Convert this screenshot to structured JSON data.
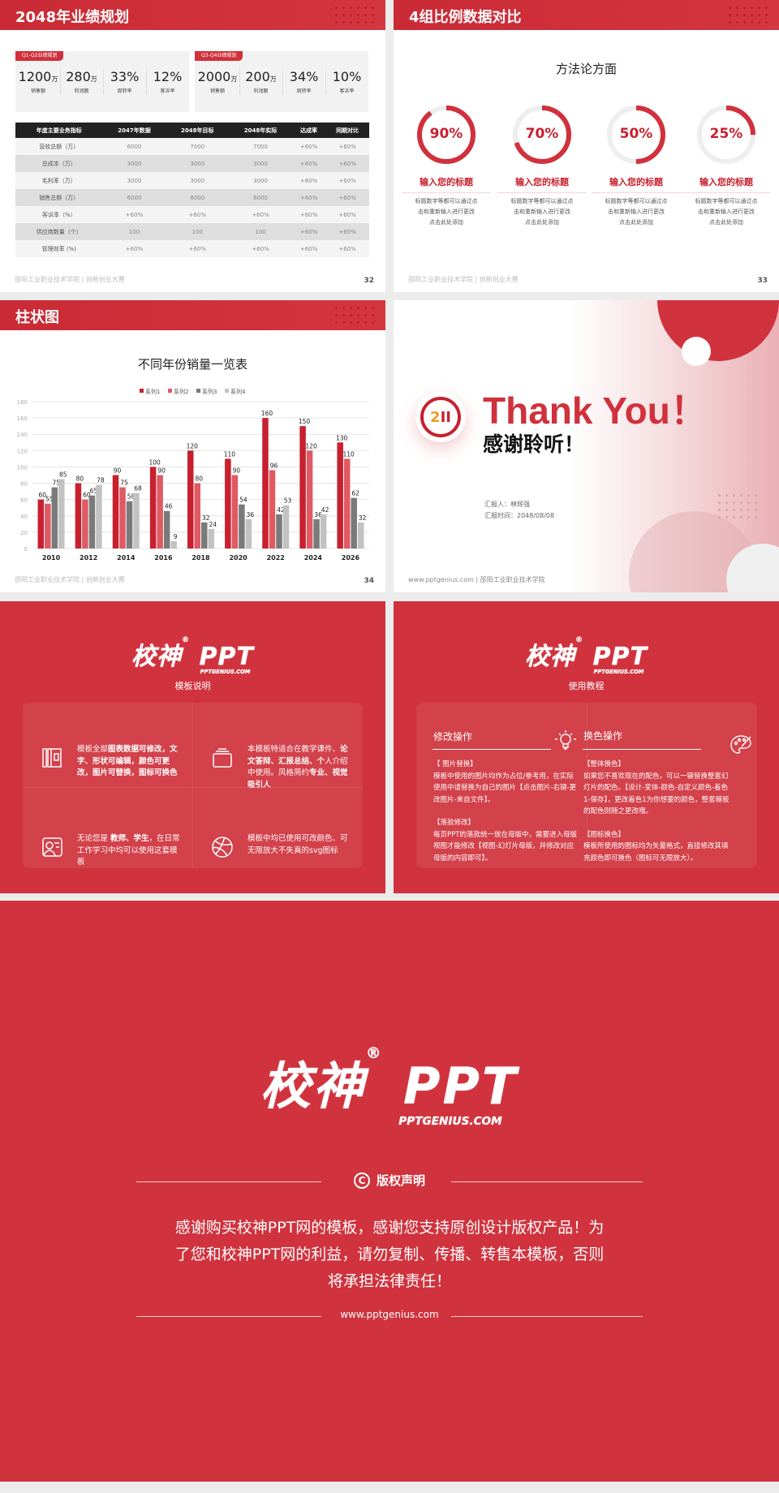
{
  "slide32": {
    "title": "2048年业绩规划",
    "page": "32",
    "footer": "邵阳工业职业技术学院 | 创新创业大赛",
    "cards": [
      {
        "tag": "Q1-Q2业绩规划",
        "kpis": [
          {
            "value": "1200",
            "unit": "万",
            "label": "销售额"
          },
          {
            "value": "280",
            "unit": "万",
            "label": "利润额"
          },
          {
            "value": "33%",
            "unit": "",
            "label": "周转率"
          },
          {
            "value": "12%",
            "unit": "",
            "label": "客诉率"
          }
        ]
      },
      {
        "tag": "Q3-Q4业绩规划",
        "kpis": [
          {
            "value": "2000",
            "unit": "万",
            "label": "销售额"
          },
          {
            "value": "200",
            "unit": "万",
            "label": "利润额"
          },
          {
            "value": "34%",
            "unit": "",
            "label": "周转率"
          },
          {
            "value": "10%",
            "unit": "",
            "label": "客诉率"
          }
        ]
      }
    ],
    "table": {
      "headers": [
        "年度主要业务指标",
        "2047年数据",
        "2048年目标",
        "2048年实际",
        "达成率",
        "同期对比"
      ],
      "rows": [
        [
          "营收总额（万）",
          "6000",
          "7000",
          "7000",
          "+60%",
          "+60%"
        ],
        [
          "总成本（万）",
          "3000",
          "3000",
          "3000",
          "+60%",
          "+60%"
        ],
        [
          "毛利率（万）",
          "3000",
          "3000",
          "3000",
          "+60%",
          "+60%"
        ],
        [
          "销售总额（万）",
          "6000",
          "6000",
          "6000",
          "+60%",
          "+60%"
        ],
        [
          "客诉率（%）",
          "+60%",
          "+60%",
          "+60%",
          "+60%",
          "+60%"
        ],
        [
          "供应商数量（个）",
          "100",
          "100",
          "100",
          "+60%",
          "+60%"
        ],
        [
          "管理效率 (%)",
          "+60%",
          "+60%",
          "+60%",
          "+60%",
          "+60%"
        ]
      ]
    }
  },
  "slide33": {
    "title": "4组比例数据对比",
    "subtitle": "方法论方面",
    "page": "33",
    "footer": "邵阳工业职业技术学院 | 创新创业大赛",
    "items": [
      {
        "percent": 90,
        "label": "90%",
        "title": "输入您的标题",
        "desc": [
          "标题数字等都可以通过点",
          "击和重新输入进行更改",
          "点击此处添加"
        ]
      },
      {
        "percent": 70,
        "label": "70%",
        "title": "输入您的标题",
        "desc": [
          "标题数字等都可以通过点",
          "击和重新输入进行更改",
          "点击此处添加"
        ]
      },
      {
        "percent": 50,
        "label": "50%",
        "title": "输入您的标题",
        "desc": [
          "标题数字等都可以通过点",
          "击和重新输入进行更改",
          "点击此处添加"
        ]
      },
      {
        "percent": 25,
        "label": "25%",
        "title": "输入您的标题",
        "desc": [
          "标题数字等都可以通过点",
          "击和重新输入进行更改",
          "点击此处添加"
        ]
      }
    ]
  },
  "slide34": {
    "title": "柱状图",
    "page": "34",
    "footer": "邵阳工业职业技术学院 | 创新创业大赛"
  },
  "chart_data": {
    "type": "bar",
    "title": "不同年份销量一览表",
    "legend_position": "top",
    "grid": true,
    "categories": [
      "2010",
      "2012",
      "2014",
      "2016",
      "2018",
      "2020",
      "2022",
      "2024",
      "2026"
    ],
    "ylim": [
      0,
      180
    ],
    "yticks": [
      0,
      20,
      40,
      60,
      80,
      100,
      120,
      140,
      160,
      180
    ],
    "series": [
      {
        "name": "系列1",
        "color": "#c8202e",
        "values": [
          60,
          80,
          90,
          100,
          120,
          110,
          160,
          150,
          130
        ]
      },
      {
        "name": "系列2",
        "color": "#e05a63",
        "values": [
          55,
          60,
          75,
          90,
          80,
          90,
          96,
          120,
          110
        ]
      },
      {
        "name": "系列3",
        "color": "#7a7a7a",
        "values": [
          75,
          65,
          58,
          46,
          32,
          54,
          42,
          36,
          62
        ]
      },
      {
        "name": "系列4",
        "color": "#c2c2c2",
        "values": [
          85,
          78,
          68,
          9,
          24,
          36,
          53,
          42,
          32
        ]
      }
    ]
  },
  "slide35": {
    "thanks": "Thank You！",
    "thanks_cn": "感谢聆听！",
    "reporter": "汇报人：林辉强",
    "date": "汇报时间：2048/08/08",
    "footer": "www.pptgenius.com | 邵阳工业职业技术学院"
  },
  "logo": {
    "text": "校神",
    "ppt": "PPT",
    "reg": "®",
    "site": "PPTGENIUS.COM"
  },
  "slide36": {
    "title": "模板说明",
    "cells": [
      {
        "icon": "pages-icon",
        "parts": [
          [
            "模板全部",
            false
          ],
          [
            "图表数据可修改，文字、形状可编辑，颜色可更改，图片可替换，图标可换色",
            true
          ]
        ]
      },
      {
        "icon": "layers-icon",
        "parts": [
          [
            "本模板特适合在教学课件、",
            false
          ],
          [
            "论文答辩、汇报总结、个",
            true
          ],
          [
            "人介绍中使用。风格简约",
            false
          ],
          [
            "专业、视觉吸引人",
            true
          ]
        ]
      },
      {
        "icon": "user-card-icon",
        "parts": [
          [
            "无论您是 ",
            false
          ],
          [
            "教师、学生",
            true
          ],
          [
            "，在日常工作学习中均可以使用这套模板",
            false
          ]
        ]
      },
      {
        "icon": "ball-icon",
        "parts": [
          [
            "模板中均已使用可改颜色、可无限放大不失真的svg图标",
            false
          ]
        ]
      }
    ]
  },
  "slide37": {
    "title": "使用教程",
    "left": {
      "heading": "修改操作",
      "icon": "lightbulb-icon",
      "blocks": [
        {
          "h": "【 图片替换】",
          "t": "模板中使用的图片均作为占位/参考用，在实际使用中请替换为自己的图片【点击图片-右键-更改图片-来自文件】。"
        },
        {
          "h": "【落款修改】",
          "t": "每页PPT的落款统一放在母版中，需要进入母版视图才能修改【视图-幻灯片母版，并修改对应母版的内容即可】。"
        }
      ]
    },
    "right": {
      "heading": "换色操作",
      "icon": "palette-icon",
      "blocks": [
        {
          "h": "【整体换色】",
          "t": "如果您不喜欢现在的配色，可以一键替换整套幻灯片的配色。【设计-变体-颜色-自定义颜色-着色1-保存】，更改着色1为你想要的颜色，整套模板的配色则随之更改哦。"
        },
        {
          "h": "【图标换色】",
          "t": "模板所使用的图标均为矢量格式，直接修改其填充颜色即可换色（图标可无限放大）。"
        }
      ]
    }
  },
  "copyright": {
    "heading": "版权声明",
    "lines": [
      "感谢购买校神PPT网的模板，感谢您支持原创设计版权产品！为",
      "了您和校神PPT网的利益，请勿复制、传播、转售本模板，否则",
      "将承担法律责任！"
    ],
    "url": "www.pptgenius.com"
  }
}
